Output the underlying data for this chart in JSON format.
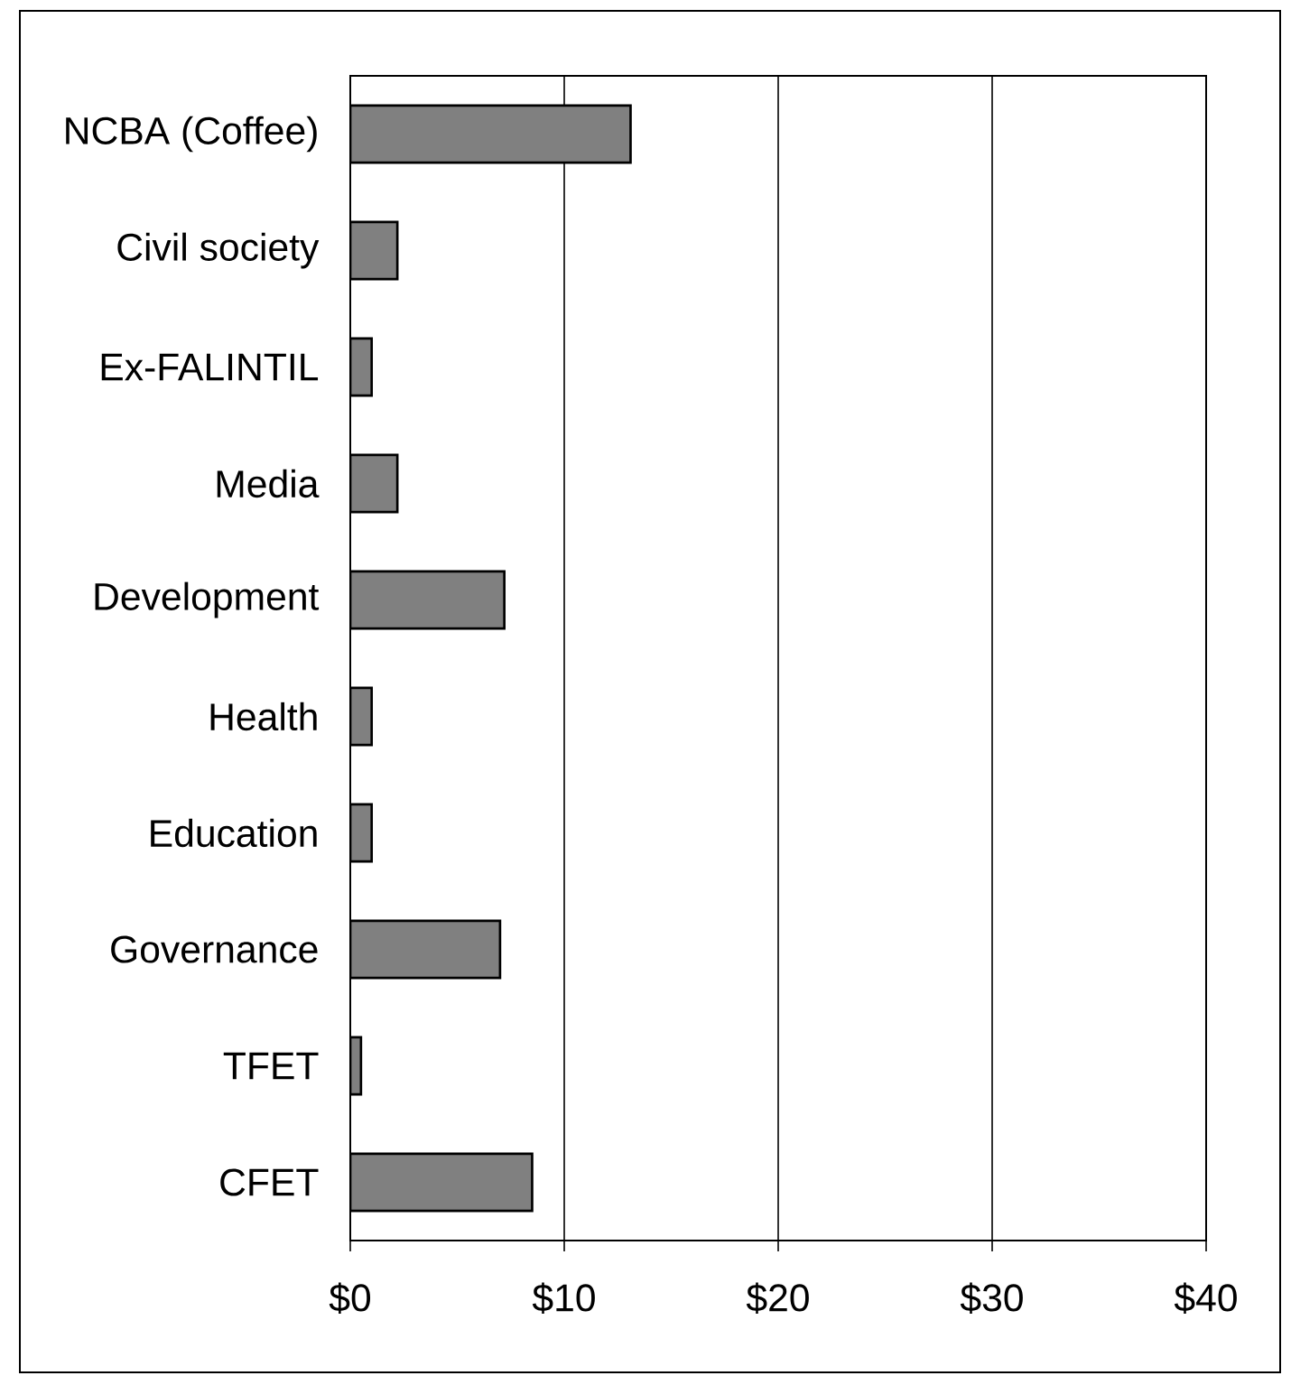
{
  "chart_data": {
    "type": "bar",
    "orientation": "horizontal",
    "categories": [
      "NCBA (Coffee)",
      "Civil society",
      "Ex-FALINTIL",
      "Media",
      "Development",
      "Health",
      "Education",
      "Governance",
      "TFET",
      "CFET"
    ],
    "values": [
      13.1,
      2.2,
      1.0,
      2.2,
      7.2,
      1.0,
      1.0,
      7.0,
      0.5,
      8.5
    ],
    "color": "#808080",
    "xlim": [
      0,
      40
    ],
    "xticks": [
      {
        "value": 0,
        "label": "$0"
      },
      {
        "value": 10,
        "label": "$10"
      },
      {
        "value": 20,
        "label": "$20"
      },
      {
        "value": 30,
        "label": "$30"
      },
      {
        "value": 40,
        "label": "$40"
      }
    ],
    "grid": "x"
  }
}
